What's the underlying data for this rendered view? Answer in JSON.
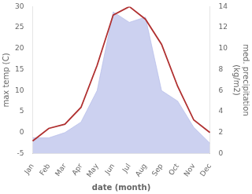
{
  "chart_data": {
    "type": "line",
    "categories": [
      "Jan",
      "Feb",
      "Mar",
      "Apr",
      "May",
      "Jun",
      "Jul",
      "Aug",
      "Sep",
      "Oct",
      "Nov",
      "Dec"
    ],
    "series": [
      {
        "type": "area",
        "color": "#b0b8e8",
        "axis": "y2",
        "values": [
          1.5,
          1.5,
          2,
          3,
          6,
          13.5,
          12.5,
          13,
          6,
          5,
          2.5,
          1
        ]
      },
      {
        "type": "line",
        "color": "#b03030",
        "axis": "y",
        "values": [
          -2,
          1,
          2,
          6,
          16,
          28,
          30,
          27,
          21,
          11,
          3,
          0
        ]
      }
    ],
    "xlabel": "date (month)",
    "ylabel": "max temp (C)",
    "y2label": "med. precipitation\n(kg/m2)",
    "ylim": [
      -5,
      30
    ],
    "yticks": [
      -5,
      0,
      5,
      10,
      15,
      20,
      25,
      30
    ],
    "y2lim": [
      0,
      14
    ],
    "y2ticks": [
      0,
      2,
      4,
      6,
      8,
      10,
      12,
      14
    ],
    "grid": false
  }
}
